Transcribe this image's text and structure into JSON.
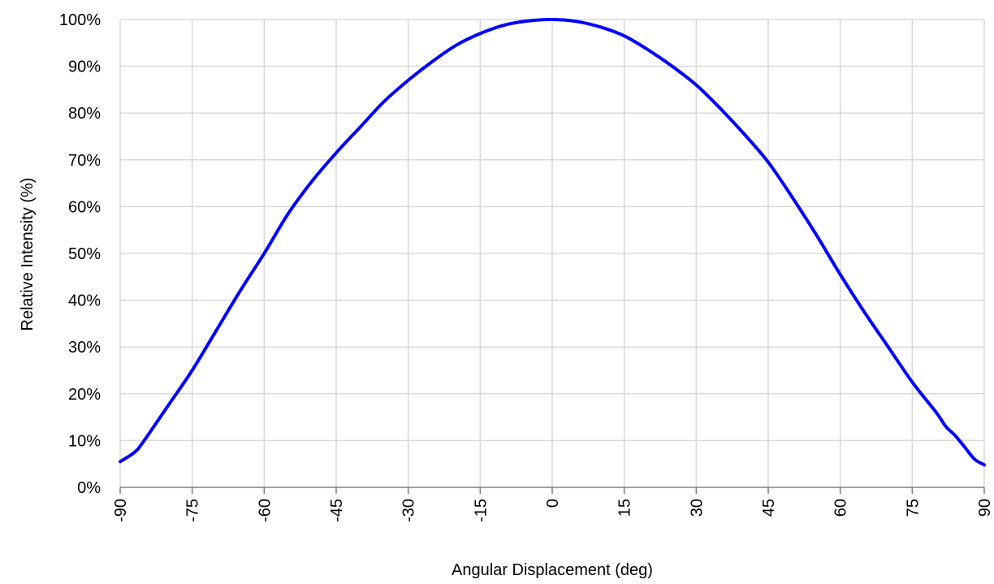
{
  "chart_data": {
    "type": "line",
    "title": "",
    "xlabel": "Angular Displacement (deg)",
    "ylabel": "Relative Intensity (%)",
    "xlim": [
      -90,
      90
    ],
    "ylim": [
      0,
      100
    ],
    "x_ticks": [
      -90,
      -75,
      -60,
      -45,
      -30,
      -15,
      0,
      15,
      30,
      45,
      60,
      75,
      90
    ],
    "x_tick_labels": [
      "-90",
      "-75",
      "-60",
      "-45",
      "-30",
      "-15",
      "0",
      "15",
      "30",
      "45",
      "60",
      "75",
      "90"
    ],
    "y_ticks": [
      0,
      10,
      20,
      30,
      40,
      50,
      60,
      70,
      80,
      90,
      100
    ],
    "y_tick_labels": [
      "0%",
      "10%",
      "20%",
      "30%",
      "40%",
      "50%",
      "60%",
      "70%",
      "80%",
      "90%",
      "100%"
    ],
    "grid": true,
    "legend": "none",
    "series": [
      {
        "color": "#0000ff",
        "x": [
          -90,
          -87,
          -85,
          -80,
          -75,
          -70,
          -65,
          -60,
          -55,
          -50,
          -45,
          -40,
          -35,
          -30,
          -25,
          -20,
          -15,
          -10,
          -5,
          0,
          5,
          10,
          15,
          20,
          25,
          30,
          35,
          40,
          45,
          50,
          55,
          60,
          65,
          70,
          75,
          80,
          82,
          84,
          86,
          88,
          90
        ],
        "y": [
          5.5,
          7.5,
          10,
          17.5,
          25,
          33.5,
          42,
          50,
          58.5,
          65.5,
          71.5,
          77,
          82.5,
          87,
          91,
          94.5,
          97,
          98.8,
          99.7,
          100,
          99.6,
          98.4,
          96.5,
          93.5,
          90,
          86,
          81,
          75.5,
          69.5,
          62,
          54,
          45.5,
          37.5,
          30,
          22.5,
          16,
          13,
          11,
          8.5,
          6,
          4.8
        ]
      }
    ]
  }
}
